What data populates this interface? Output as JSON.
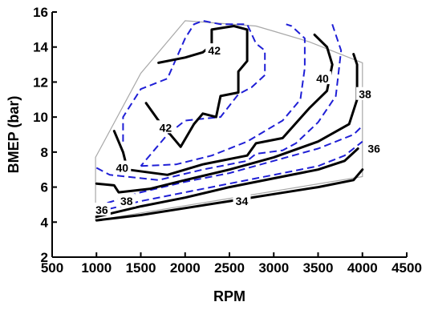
{
  "chart_data": {
    "type": "contour",
    "xlabel": "RPM",
    "ylabel": "BMEP (bar)",
    "xlim": [
      500,
      4500
    ],
    "ylim": [
      2,
      16
    ],
    "x_ticks": [
      "500",
      "1000",
      "1500",
      "2000",
      "2500",
      "3000",
      "3500",
      "4000",
      "4500"
    ],
    "y_ticks": [
      "2",
      "4",
      "6",
      "8",
      "10",
      "12",
      "14",
      "16"
    ],
    "grid": false,
    "colors": {
      "solid": "#000000",
      "dashed": "#1f1fd6",
      "boundary": "#a8a8a8"
    },
    "boundary": [
      [
        990,
        4.1
      ],
      [
        990,
        7.7
      ],
      [
        1500,
        12.5
      ],
      [
        2000,
        15.5
      ],
      [
        2800,
        15.2
      ],
      [
        3000,
        14.9
      ],
      [
        3400,
        14.3
      ],
      [
        4000,
        13.1
      ],
      [
        4000,
        6.6
      ],
      [
        990,
        4.1
      ]
    ],
    "solid_contours": [
      {
        "level": "34",
        "points": [
          [
            1000,
            4.1
          ],
          [
            1500,
            4.4
          ],
          [
            2000,
            4.8
          ],
          [
            2500,
            5.2
          ],
          [
            3000,
            5.6
          ],
          [
            3500,
            6.0
          ],
          [
            3900,
            6.4
          ],
          [
            4000,
            7.0
          ]
        ]
      },
      {
        "level": "36",
        "points": [
          [
            1000,
            4.3
          ],
          [
            1500,
            4.9
          ],
          [
            2000,
            5.4
          ],
          [
            2500,
            6.0
          ],
          [
            3000,
            6.5
          ],
          [
            3500,
            7.0
          ],
          [
            3800,
            7.5
          ],
          [
            3950,
            8.2
          ]
        ]
      },
      {
        "level": "38",
        "points": [
          [
            1000,
            6.2
          ],
          [
            1200,
            6.1
          ],
          [
            1250,
            5.7
          ],
          [
            1600,
            5.9
          ],
          [
            2000,
            6.4
          ],
          [
            2500,
            7.0
          ],
          [
            3000,
            7.7
          ],
          [
            3500,
            8.6
          ],
          [
            3850,
            9.6
          ],
          [
            3940,
            11.0
          ],
          [
            3940,
            13.0
          ],
          [
            3900,
            13.6
          ]
        ]
      },
      {
        "level": "40",
        "points": [
          [
            1200,
            9.2
          ],
          [
            1300,
            8.0
          ],
          [
            1350,
            7.0
          ],
          [
            1800,
            6.7
          ],
          [
            2200,
            7.3
          ],
          [
            2700,
            7.8
          ],
          [
            2800,
            8.5
          ],
          [
            3100,
            8.8
          ],
          [
            3400,
            10.5
          ],
          [
            3600,
            11.5
          ],
          [
            3660,
            13.0
          ],
          [
            3600,
            14.0
          ],
          [
            3460,
            14.7
          ]
        ]
      },
      {
        "level": "42",
        "points": [
          [
            1700,
            13.1
          ],
          [
            2000,
            13.4
          ],
          [
            2200,
            13.7
          ],
          [
            2300,
            14.1
          ],
          [
            2300,
            15.0
          ],
          [
            2550,
            15.2
          ],
          [
            2700,
            15.0
          ],
          [
            2700,
            13.2
          ],
          [
            2600,
            12.6
          ],
          [
            2600,
            11.4
          ],
          [
            2400,
            11.2
          ],
          [
            2350,
            10.0
          ],
          [
            2200,
            10.2
          ],
          [
            2100,
            9.6
          ],
          [
            1950,
            8.3
          ],
          [
            1900,
            8.6
          ],
          [
            1700,
            9.8
          ],
          [
            1560,
            10.8
          ]
        ]
      }
    ],
    "dashed_contours": [
      {
        "points": [
          [
            1020,
            4.6
          ],
          [
            1500,
            5.2
          ],
          [
            2000,
            5.7
          ],
          [
            2500,
            6.2
          ],
          [
            3000,
            6.7
          ],
          [
            3500,
            7.2
          ],
          [
            3800,
            7.8
          ],
          [
            4000,
            8.6
          ]
        ]
      },
      {
        "points": [
          [
            1000,
            4.9
          ],
          [
            1500,
            5.7
          ],
          [
            2000,
            6.3
          ],
          [
            2500,
            6.8
          ],
          [
            3000,
            7.5
          ],
          [
            3500,
            8.2
          ],
          [
            3900,
            9.0
          ],
          [
            4000,
            9.5
          ]
        ]
      },
      {
        "points": [
          [
            1000,
            7.1
          ],
          [
            1150,
            6.7
          ],
          [
            1700,
            6.4
          ],
          [
            2200,
            7.0
          ],
          [
            2700,
            7.5
          ],
          [
            2800,
            7.9
          ],
          [
            3100,
            8.1
          ],
          [
            3250,
            8.5
          ],
          [
            3500,
            9.7
          ],
          [
            3700,
            11.2
          ],
          [
            3760,
            13.8
          ],
          [
            3660,
            15.3
          ]
        ]
      },
      {
        "points": [
          [
            1500,
            7.2
          ],
          [
            1900,
            7.3
          ],
          [
            2300,
            7.8
          ],
          [
            2700,
            8.6
          ],
          [
            2900,
            9.2
          ],
          [
            3100,
            9.8
          ],
          [
            3300,
            11.0
          ],
          [
            3350,
            12.8
          ],
          [
            3350,
            14.5
          ],
          [
            3200,
            15.2
          ],
          [
            3140,
            15.3
          ]
        ]
      },
      {
        "points": [
          [
            1300,
            8.6
          ],
          [
            1300,
            10.0
          ],
          [
            1500,
            11.6
          ],
          [
            1800,
            12.2
          ],
          [
            2000,
            14.5
          ],
          [
            2100,
            15.3
          ],
          [
            2200,
            15.5
          ],
          [
            2400,
            15.3
          ],
          [
            2700,
            15.3
          ],
          [
            2800,
            14.2
          ],
          [
            2900,
            13.8
          ],
          [
            2900,
            12.4
          ],
          [
            2750,
            11.7
          ],
          [
            2600,
            11.3
          ],
          [
            2400,
            10.0
          ],
          [
            2000,
            9.8
          ],
          [
            1800,
            9.0
          ],
          [
            1500,
            7.2
          ]
        ]
      }
    ],
    "labels": [
      {
        "text": "34",
        "x": 2640,
        "y": 5.2
      },
      {
        "text": "36",
        "x": 1060,
        "y": 4.7
      },
      {
        "text": "36",
        "x": 4130,
        "y": 8.2
      },
      {
        "text": "38",
        "x": 1340,
        "y": 5.2
      },
      {
        "text": "38",
        "x": 4030,
        "y": 11.3
      },
      {
        "text": "40",
        "x": 1290,
        "y": 7.1
      },
      {
        "text": "40",
        "x": 3550,
        "y": 12.2
      },
      {
        "text": "42",
        "x": 2330,
        "y": 13.8
      },
      {
        "text": "42",
        "x": 1780,
        "y": 9.4
      }
    ]
  }
}
